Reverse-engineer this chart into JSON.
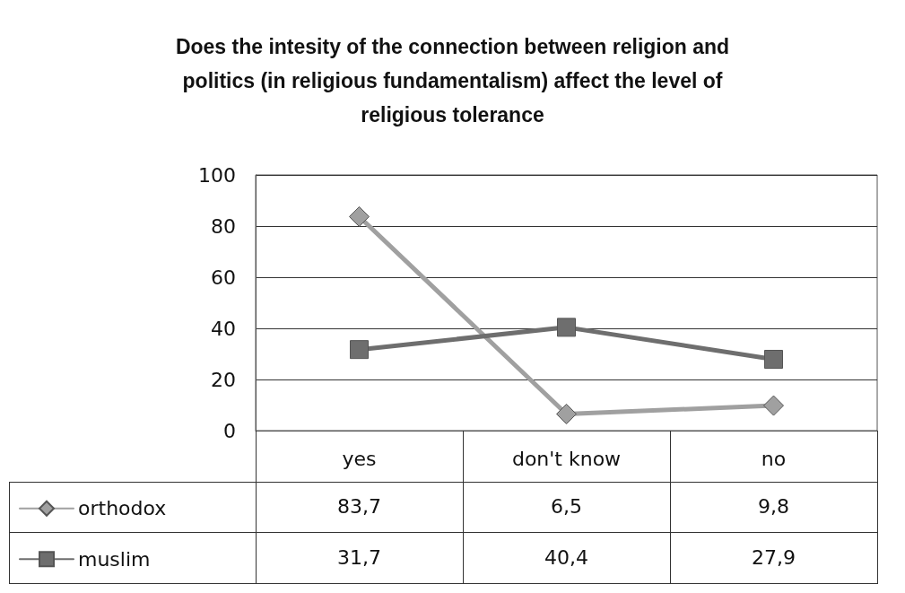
{
  "chart_data": {
    "type": "line",
    "title": "Does the intesity of the connection between religion and\npolitics (in religious fundamentalism) affect the level of\nreligious tolerance",
    "categories": [
      "yes",
      "don't know",
      "no"
    ],
    "series": [
      {
        "name": "orthodox",
        "color": "#a0a0a0",
        "marker": "diamond",
        "values": [
          83.7,
          6.5,
          9.8
        ],
        "value_labels": [
          "83,7",
          "6,5",
          "9,8"
        ]
      },
      {
        "name": "muslim",
        "color": "#6e6e6e",
        "marker": "square",
        "values": [
          31.7,
          40.4,
          27.9
        ],
        "value_labels": [
          "31,7",
          "40,4",
          "27,9"
        ]
      }
    ],
    "ylim": [
      0,
      100
    ],
    "yticks": [
      0,
      20,
      40,
      60,
      80,
      100
    ],
    "grid": "y",
    "legend": "bottom left",
    "line_style": "solid"
  }
}
